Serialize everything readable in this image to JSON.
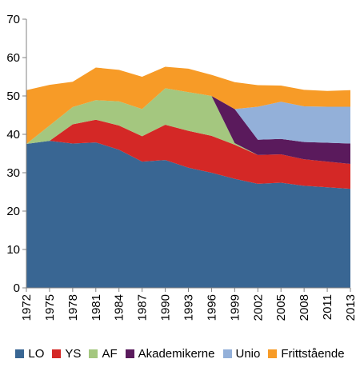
{
  "chart_data": {
    "type": "area",
    "stacked": true,
    "title": "",
    "xlabel": "",
    "ylabel": "",
    "x": [
      "1972",
      "1975",
      "1978",
      "1981",
      "1984",
      "1987",
      "1990",
      "1993",
      "1996",
      "1999",
      "2002",
      "2005",
      "2008",
      "2011",
      "2013"
    ],
    "ylim": [
      0,
      70
    ],
    "yticks": [
      0,
      10,
      20,
      30,
      40,
      50,
      60,
      70
    ],
    "grid": false,
    "legend_position": "bottom",
    "series": [
      {
        "name": "LO",
        "color": "#396693",
        "values": [
          37.5,
          38.3,
          37.6,
          37.9,
          36.0,
          32.9,
          33.3,
          31.3,
          30.0,
          28.4,
          27.1,
          27.4,
          26.6,
          26.2,
          25.8
        ]
      },
      {
        "name": "YS",
        "color": "#d42826",
        "values": [
          0.0,
          0.0,
          5.0,
          5.9,
          6.3,
          6.6,
          9.2,
          9.6,
          9.6,
          8.9,
          7.5,
          7.4,
          6.9,
          6.7,
          6.5
        ]
      },
      {
        "name": "AF",
        "color": "#a4c77f",
        "values": [
          0.0,
          4.0,
          4.5,
          5.1,
          6.3,
          7.1,
          9.5,
          10.1,
          10.4,
          0.4,
          0.0,
          0.0,
          0.0,
          0.0,
          0.0
        ]
      },
      {
        "name": "Akademikerne",
        "color": "#5a1a5c",
        "values": [
          0.0,
          0.0,
          0.0,
          0.0,
          0.0,
          0.0,
          0.0,
          0.0,
          0.0,
          8.9,
          4.0,
          4.0,
          4.5,
          4.9,
          5.3
        ]
      },
      {
        "name": "Unio",
        "color": "#93b0d9",
        "values": [
          0.0,
          0.0,
          0.0,
          0.0,
          0.0,
          0.0,
          0.0,
          0.0,
          0.0,
          0.0,
          8.6,
          9.7,
          9.3,
          9.4,
          9.6
        ]
      },
      {
        "name": "Frittstående",
        "color": "#f79b27",
        "values": [
          14.0,
          10.6,
          6.6,
          8.5,
          8.2,
          8.4,
          5.6,
          6.1,
          5.5,
          7.0,
          5.6,
          4.2,
          4.3,
          4.1,
          4.3
        ]
      }
    ]
  }
}
